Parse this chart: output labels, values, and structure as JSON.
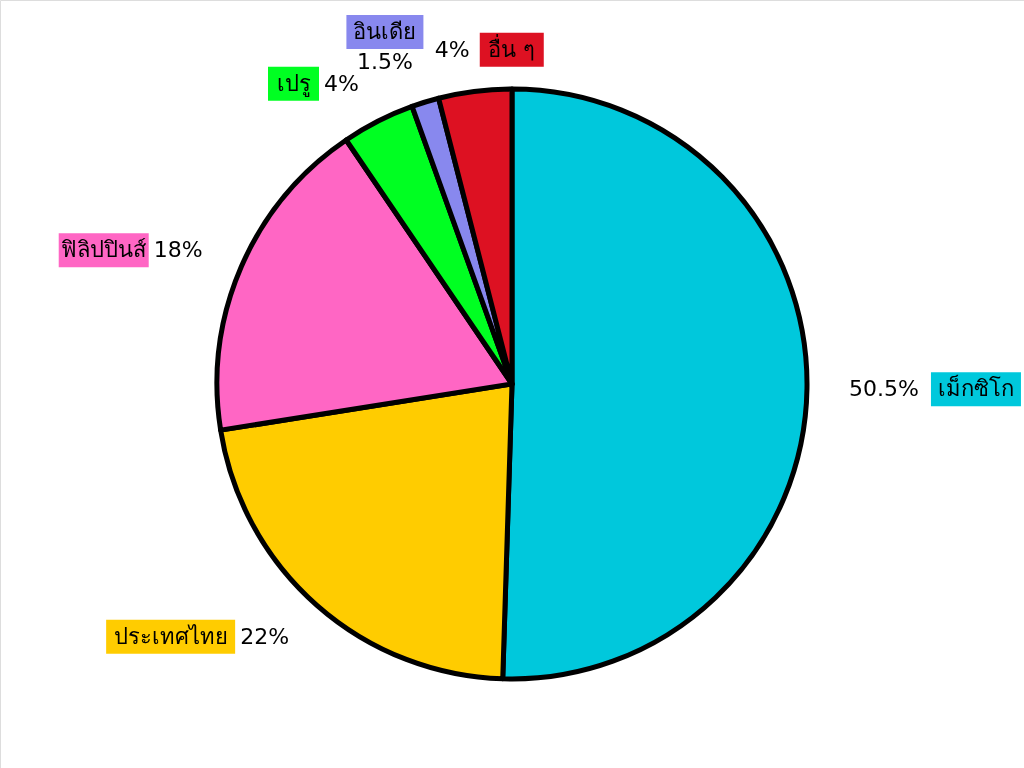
{
  "chart_data": {
    "type": "pie",
    "categories": [
      "เม็กซิโก",
      "ประเทศไทย",
      "ฟิลิปปินส์",
      "เปรู",
      "อินเดีย",
      "อื่น ๆ"
    ],
    "values": [
      50.5,
      22,
      18,
      4,
      1.5,
      4
    ],
    "value_labels": [
      "50.5%",
      "22%",
      "18%",
      "4%",
      "1.5%",
      "4%"
    ],
    "colors": [
      "#00c8dc",
      "#ffcc00",
      "#ff66c4",
      "#00ff22",
      "#8888ee",
      "#dd1122"
    ]
  }
}
